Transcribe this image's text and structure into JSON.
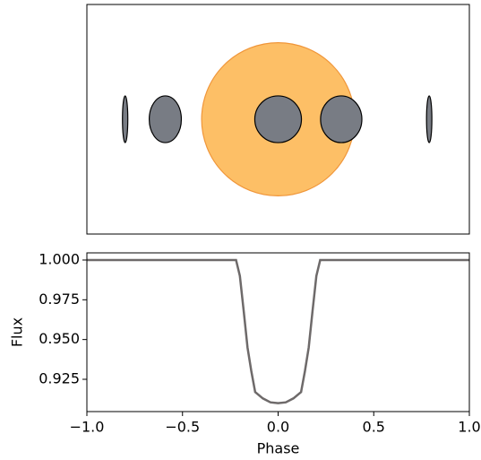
{
  "chart_data": [
    {
      "type": "orbit",
      "xlim": [
        -1,
        1
      ],
      "ylim": [
        -0.6,
        0.6
      ],
      "star_radius": 0.4,
      "star_color": "#fdbf66",
      "planet_radius": 0.122,
      "planet_color": "#787c84",
      "x": [
        -0.8,
        -0.59,
        0,
        0.33,
        0.79
      ],
      "values": [
        0.014,
        0.084,
        0.122,
        0.108,
        0.014
      ]
    },
    {
      "type": "line",
      "xlabel": "Phase",
      "ylabel": "Flux",
      "xlim": [
        -1,
        1
      ],
      "ylim": [
        0.9047,
        1.0045
      ],
      "xticks": [
        {
          "value": -1,
          "label": "−1.0"
        },
        {
          "value": -0.5,
          "label": "−0.5"
        },
        {
          "value": 0,
          "label": "0.0"
        },
        {
          "value": 0.5,
          "label": "0.5"
        },
        {
          "value": 1,
          "label": "1.0"
        }
      ],
      "yticks": [
        {
          "value": 0.925,
          "label": "0.925"
        },
        {
          "value": 0.95,
          "label": "0.950"
        },
        {
          "value": 0.975,
          "label": "0.975"
        },
        {
          "value": 1,
          "label": "1.000"
        }
      ],
      "x": [
        -1,
        -0.22,
        -0.2,
        -0.18,
        -0.16,
        -0.14,
        -0.12,
        -0.08,
        -0.04,
        0,
        0.04,
        0.08,
        0.12,
        0.14,
        0.16,
        0.18,
        0.2,
        0.22,
        1
      ],
      "series": [
        {
          "color": "#6e6a6a",
          "values": [
            1,
            1,
            0.99,
            0.968,
            0.945,
            0.93,
            0.917,
            0.913,
            0.9105,
            0.91,
            0.9105,
            0.913,
            0.917,
            0.93,
            0.945,
            0.968,
            0.99,
            1,
            1
          ]
        }
      ]
    }
  ]
}
